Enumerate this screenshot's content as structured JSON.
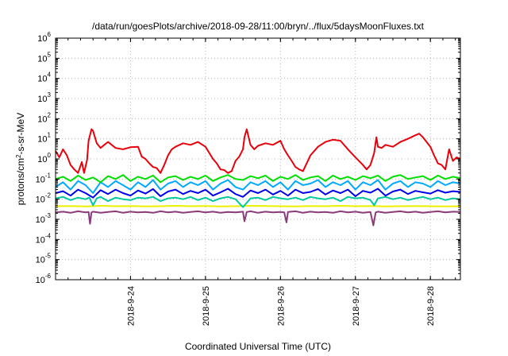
{
  "chart_data": {
    "type": "line",
    "title": "/data/run/goesPlots/archive/2018-09-28/11:00/bryn/../flux/5daysMoonFluxes.txt",
    "xlabel": "Coordinated Universal Time (UTC)",
    "ylabel": {
      "prefix": "protons/cm",
      "sup": "2",
      "suffix": "-s-sr-MeV"
    },
    "yscale": "log",
    "ylim": [
      1e-06,
      1000000.0
    ],
    "y_ticks": [
      {
        "base": "10",
        "exp": "-6",
        "value": 1e-06
      },
      {
        "base": "10",
        "exp": "-5",
        "value": 1e-05
      },
      {
        "base": "10",
        "exp": "-4",
        "value": 0.0001
      },
      {
        "base": "10",
        "exp": "-3",
        "value": 0.001
      },
      {
        "base": "10",
        "exp": "-2",
        "value": 0.01
      },
      {
        "base": "10",
        "exp": "-1",
        "value": 0.1
      },
      {
        "base": "10",
        "exp": "0",
        "value": 1
      },
      {
        "base": "10",
        "exp": "1",
        "value": 10
      },
      {
        "base": "10",
        "exp": "2",
        "value": 100
      },
      {
        "base": "10",
        "exp": "3",
        "value": 1000
      },
      {
        "base": "10",
        "exp": "4",
        "value": 10000
      },
      {
        "base": "10",
        "exp": "5",
        "value": 100000
      },
      {
        "base": "10",
        "exp": "6",
        "value": 1000000
      }
    ],
    "xlim": [
      0,
      5.4
    ],
    "x_ticks": [
      {
        "label": "2018-9-24",
        "day": 1.0
      },
      {
        "label": "2018-9-25",
        "day": 2.0
      },
      {
        "label": "2018-9-26",
        "day": 3.0
      },
      {
        "label": "2018-9-27",
        "day": 4.0
      },
      {
        "label": "2018-9-28",
        "day": 5.0
      }
    ],
    "grid": true,
    "series": [
      {
        "color": "#e8000b",
        "x": [
          0.0,
          0.05,
          0.1,
          0.15,
          0.2,
          0.25,
          0.3,
          0.35,
          0.38,
          0.42,
          0.44,
          0.48,
          0.5,
          0.55,
          0.6,
          0.65,
          0.7,
          0.8,
          0.9,
          1.0,
          1.1,
          1.15,
          1.2,
          1.25,
          1.3,
          1.35,
          1.4,
          1.45,
          1.5,
          1.55,
          1.6,
          1.7,
          1.8,
          1.9,
          2.0,
          2.05,
          2.1,
          2.15,
          2.2,
          2.25,
          2.3,
          2.35,
          2.4,
          2.45,
          2.5,
          2.52,
          2.55,
          2.6,
          2.65,
          2.7,
          2.8,
          2.9,
          3.0,
          3.05,
          3.1,
          3.15,
          3.2,
          3.25,
          3.3,
          3.35,
          3.4,
          3.5,
          3.6,
          3.7,
          3.8,
          3.9,
          4.0,
          4.1,
          4.15,
          4.2,
          4.25,
          4.28,
          4.3,
          4.35,
          4.4,
          4.5,
          4.6,
          4.7,
          4.8,
          4.85,
          4.9,
          5.0,
          5.05,
          5.1,
          5.15,
          5.2,
          5.25,
          5.3,
          5.35,
          5.4
        ],
        "values": [
          2.5,
          1.2,
          3.0,
          1.5,
          0.5,
          0.3,
          0.2,
          0.7,
          0.2,
          0.9,
          8.0,
          30,
          25,
          6,
          3.5,
          5,
          7,
          3.5,
          3.0,
          3.8,
          4.0,
          1.3,
          1.0,
          0.6,
          0.4,
          0.35,
          0.2,
          0.5,
          1.5,
          3.0,
          4.0,
          6.0,
          5.0,
          7.0,
          4.0,
          2.0,
          1.0,
          0.6,
          0.3,
          0.28,
          0.2,
          0.25,
          0.8,
          1.3,
          3.0,
          12,
          30,
          5.0,
          3.0,
          4.5,
          6.0,
          5.0,
          8.0,
          3.0,
          1.5,
          0.8,
          0.4,
          0.3,
          0.25,
          0.6,
          1.5,
          4.0,
          7.0,
          9.0,
          8.0,
          3.0,
          1.2,
          0.5,
          0.3,
          0.5,
          2.0,
          12,
          4.0,
          3.5,
          5.0,
          4.0,
          7.0,
          10.0,
          15.0,
          18.0,
          12.0,
          4.0,
          1.5,
          0.6,
          0.5,
          0.3,
          3.0,
          0.8,
          1.2,
          1.0
        ]
      },
      {
        "color": "#00e000",
        "x": [
          0.0,
          0.1,
          0.2,
          0.3,
          0.4,
          0.5,
          0.6,
          0.7,
          0.8,
          0.9,
          1.0,
          1.1,
          1.2,
          1.3,
          1.4,
          1.5,
          1.6,
          1.7,
          1.8,
          1.9,
          2.0,
          2.1,
          2.2,
          2.3,
          2.4,
          2.5,
          2.6,
          2.7,
          2.8,
          2.9,
          3.0,
          3.1,
          3.2,
          3.3,
          3.4,
          3.5,
          3.6,
          3.7,
          3.8,
          3.9,
          4.0,
          4.1,
          4.2,
          4.3,
          4.4,
          4.5,
          4.6,
          4.7,
          4.8,
          4.9,
          5.0,
          5.1,
          5.2,
          5.3,
          5.4
        ],
        "values": [
          0.1,
          0.13,
          0.08,
          0.15,
          0.09,
          0.12,
          0.07,
          0.14,
          0.1,
          0.16,
          0.08,
          0.13,
          0.1,
          0.15,
          0.07,
          0.12,
          0.14,
          0.09,
          0.13,
          0.1,
          0.15,
          0.08,
          0.12,
          0.16,
          0.1,
          0.09,
          0.14,
          0.11,
          0.15,
          0.08,
          0.13,
          0.1,
          0.16,
          0.09,
          0.12,
          0.14,
          0.08,
          0.15,
          0.1,
          0.13,
          0.09,
          0.14,
          0.11,
          0.15,
          0.08,
          0.13,
          0.16,
          0.1,
          0.12,
          0.14,
          0.09,
          0.15,
          0.1,
          0.13,
          0.11
        ]
      },
      {
        "color": "#00aaff",
        "x": [
          0.0,
          0.1,
          0.2,
          0.3,
          0.4,
          0.5,
          0.6,
          0.7,
          0.8,
          0.9,
          1.0,
          1.1,
          1.2,
          1.3,
          1.4,
          1.5,
          1.6,
          1.7,
          1.8,
          1.9,
          2.0,
          2.1,
          2.2,
          2.3,
          2.4,
          2.5,
          2.6,
          2.7,
          2.8,
          2.9,
          3.0,
          3.1,
          3.2,
          3.3,
          3.4,
          3.5,
          3.6,
          3.7,
          3.8,
          3.9,
          4.0,
          4.1,
          4.2,
          4.3,
          4.4,
          4.5,
          4.6,
          4.7,
          4.8,
          4.9,
          5.0,
          5.1,
          5.2,
          5.3,
          5.4
        ],
        "values": [
          0.04,
          0.07,
          0.03,
          0.08,
          0.05,
          0.02,
          0.07,
          0.04,
          0.08,
          0.05,
          0.03,
          0.07,
          0.04,
          0.09,
          0.03,
          0.06,
          0.08,
          0.04,
          0.07,
          0.05,
          0.08,
          0.03,
          0.06,
          0.09,
          0.04,
          0.03,
          0.07,
          0.05,
          0.08,
          0.04,
          0.07,
          0.03,
          0.08,
          0.05,
          0.06,
          0.09,
          0.04,
          0.07,
          0.05,
          0.08,
          0.03,
          0.07,
          0.05,
          0.09,
          0.03,
          0.06,
          0.08,
          0.04,
          0.07,
          0.06,
          0.04,
          0.08,
          0.05,
          0.07,
          0.06
        ]
      },
      {
        "color": "#0000ee",
        "x": [
          0.0,
          0.1,
          0.2,
          0.3,
          0.4,
          0.5,
          0.6,
          0.7,
          0.8,
          0.9,
          1.0,
          1.1,
          1.2,
          1.3,
          1.4,
          1.5,
          1.6,
          1.7,
          1.8,
          1.9,
          2.0,
          2.1,
          2.2,
          2.3,
          2.4,
          2.5,
          2.6,
          2.7,
          2.8,
          2.9,
          3.0,
          3.1,
          3.2,
          3.3,
          3.4,
          3.5,
          3.6,
          3.7,
          3.8,
          3.9,
          4.0,
          4.1,
          4.2,
          4.3,
          4.4,
          4.5,
          4.6,
          4.7,
          4.8,
          4.9,
          5.0,
          5.1,
          5.2,
          5.3,
          5.4
        ],
        "values": [
          0.02,
          0.025,
          0.015,
          0.03,
          0.02,
          0.012,
          0.028,
          0.018,
          0.03,
          0.02,
          0.015,
          0.027,
          0.019,
          0.032,
          0.014,
          0.024,
          0.03,
          0.018,
          0.026,
          0.02,
          0.03,
          0.015,
          0.022,
          0.033,
          0.018,
          0.013,
          0.027,
          0.02,
          0.03,
          0.017,
          0.026,
          0.015,
          0.03,
          0.02,
          0.023,
          0.032,
          0.017,
          0.027,
          0.02,
          0.03,
          0.014,
          0.026,
          0.021,
          0.033,
          0.015,
          0.024,
          0.03,
          0.018,
          0.026,
          0.022,
          0.019,
          0.028,
          0.021,
          0.025,
          0.023
        ]
      },
      {
        "color": "#00c8a0",
        "x": [
          0.0,
          0.1,
          0.2,
          0.3,
          0.4,
          0.45,
          0.5,
          0.55,
          0.6,
          0.7,
          0.8,
          0.9,
          1.0,
          1.1,
          1.2,
          1.3,
          1.4,
          1.5,
          1.6,
          1.7,
          1.8,
          1.9,
          2.0,
          2.1,
          2.2,
          2.3,
          2.4,
          2.5,
          2.6,
          2.7,
          2.8,
          2.9,
          3.0,
          3.1,
          3.2,
          3.3,
          3.4,
          3.5,
          3.6,
          3.7,
          3.8,
          3.9,
          4.0,
          4.1,
          4.2,
          4.25,
          4.3,
          4.4,
          4.5,
          4.6,
          4.7,
          4.8,
          4.9,
          5.0,
          5.1,
          5.2,
          5.3,
          5.4
        ],
        "values": [
          0.011,
          0.013,
          0.009,
          0.012,
          0.01,
          0.012,
          0.005,
          0.011,
          0.013,
          0.008,
          0.012,
          0.01,
          0.009,
          0.012,
          0.011,
          0.013,
          0.008,
          0.011,
          0.012,
          0.01,
          0.013,
          0.009,
          0.012,
          0.008,
          0.011,
          0.013,
          0.01,
          0.004,
          0.011,
          0.012,
          0.009,
          0.013,
          0.011,
          0.01,
          0.012,
          0.009,
          0.013,
          0.011,
          0.01,
          0.012,
          0.008,
          0.013,
          0.011,
          0.012,
          0.009,
          0.005,
          0.011,
          0.013,
          0.01,
          0.012,
          0.009,
          0.011,
          0.013,
          0.01,
          0.012,
          0.009,
          0.011,
          0.01
        ]
      },
      {
        "color": "#eeee00",
        "x": [
          0.0,
          0.2,
          0.4,
          0.6,
          0.8,
          1.0,
          1.2,
          1.4,
          1.6,
          1.8,
          2.0,
          2.2,
          2.4,
          2.6,
          2.8,
          3.0,
          3.2,
          3.4,
          3.6,
          3.8,
          4.0,
          4.2,
          4.4,
          4.6,
          4.8,
          5.0,
          5.2,
          5.4
        ],
        "values": [
          0.0045,
          0.0046,
          0.0044,
          0.0047,
          0.0045,
          0.0046,
          0.0044,
          0.0045,
          0.0047,
          0.0045,
          0.0046,
          0.0044,
          0.0045,
          0.0047,
          0.0046,
          0.0045,
          0.0044,
          0.0046,
          0.0045,
          0.0047,
          0.0045,
          0.0046,
          0.0044,
          0.0045,
          0.0046,
          0.0045,
          0.0044,
          0.0045
        ]
      },
      {
        "color": "#8b3a7a",
        "x": [
          0.0,
          0.1,
          0.2,
          0.3,
          0.4,
          0.44,
          0.46,
          0.48,
          0.5,
          0.6,
          0.7,
          0.8,
          0.9,
          1.0,
          1.1,
          1.2,
          1.3,
          1.4,
          1.5,
          1.6,
          1.7,
          1.8,
          1.9,
          2.0,
          2.1,
          2.2,
          2.3,
          2.4,
          2.5,
          2.52,
          2.55,
          2.6,
          2.7,
          2.8,
          2.9,
          3.0,
          3.05,
          3.08,
          3.1,
          3.2,
          3.3,
          3.4,
          3.5,
          3.6,
          3.7,
          3.8,
          3.9,
          4.0,
          4.1,
          4.2,
          4.24,
          4.27,
          4.3,
          4.4,
          4.5,
          4.6,
          4.7,
          4.8,
          4.9,
          5.0,
          5.1,
          5.2,
          5.3,
          5.4
        ],
        "values": [
          0.0022,
          0.0024,
          0.0021,
          0.0025,
          0.0022,
          0.0023,
          0.0006,
          0.0022,
          0.0024,
          0.0021,
          0.0023,
          0.0025,
          0.0021,
          0.0024,
          0.0022,
          0.0023,
          0.0021,
          0.0025,
          0.0022,
          0.0024,
          0.0021,
          0.0023,
          0.0025,
          0.0022,
          0.0024,
          0.0021,
          0.0023,
          0.0022,
          0.0024,
          0.0008,
          0.0023,
          0.0025,
          0.0021,
          0.0024,
          0.0022,
          0.0023,
          0.0022,
          0.0007,
          0.0023,
          0.0025,
          0.0021,
          0.0024,
          0.0022,
          0.0023,
          0.0021,
          0.0025,
          0.0022,
          0.0024,
          0.0021,
          0.0023,
          0.0005,
          0.0022,
          0.0024,
          0.0021,
          0.0023,
          0.0025,
          0.0022,
          0.0024,
          0.0021,
          0.0023,
          0.0025,
          0.0022,
          0.0024,
          0.0023
        ]
      }
    ]
  }
}
